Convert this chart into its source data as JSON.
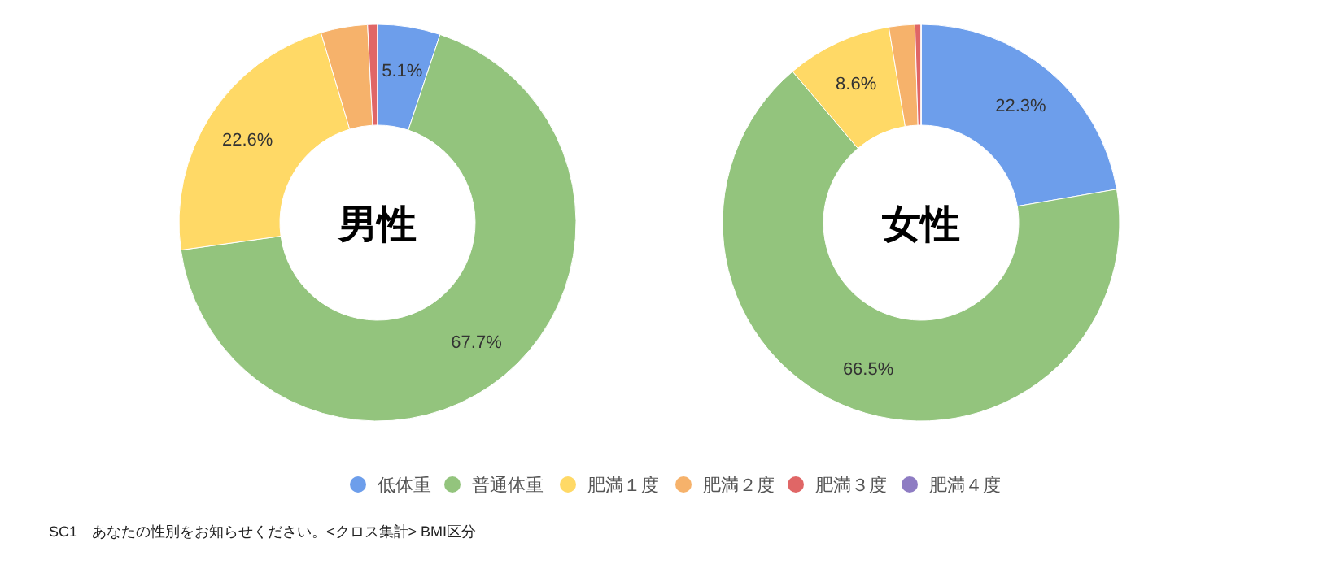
{
  "chart_data": [
    {
      "type": "donut",
      "title": "男性",
      "categories": [
        "低体重",
        "普通体重",
        "肥満１度",
        "肥満２度",
        "肥満３度",
        "肥満４度"
      ],
      "values": [
        5.1,
        67.7,
        22.6,
        3.8,
        0.8,
        0
      ],
      "colors": [
        "#6d9eeb",
        "#93c47d",
        "#ffd966",
        "#f6b26b",
        "#e06666",
        "#8e7cc3"
      ],
      "value_labels": [
        "5.1%",
        "67.7%",
        "22.6%",
        null,
        null,
        null
      ],
      "legend": "bottom",
      "annotations": [
        "SC1　あなたの性別をお知らせください。<クロス集計> BMI区分"
      ]
    },
    {
      "type": "donut",
      "title": "女性",
      "categories": [
        null,
        null,
        null,
        null,
        null,
        null
      ],
      "values": [
        22.3,
        66.5,
        8.6,
        2.1,
        0.5,
        0
      ],
      "colors": [
        "#6d9eeb",
        "#93c47d",
        "#ffd966",
        "#f6b26b",
        "#e06666",
        "#8e7cc3"
      ],
      "value_labels": [
        "22.3%",
        "66.5%",
        "8.6%",
        null,
        null,
        null
      ]
    }
  ]
}
